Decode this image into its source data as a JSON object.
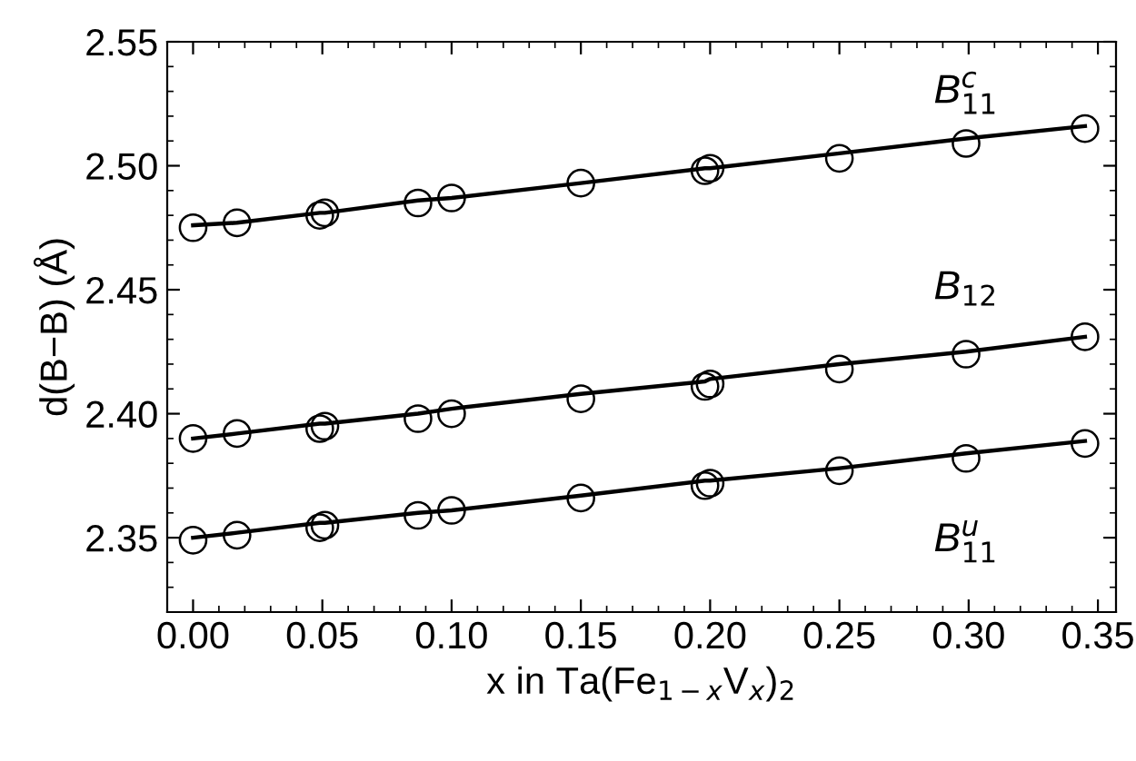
{
  "chart_data": {
    "type": "scatter",
    "xlabel": "x in Ta(Fe$_{1−x}$V$_{x}$)$_{2}$",
    "ylabel": "d(B−B) (Å)",
    "x": [
      0,
      0.017,
      0.049,
      0.051,
      0.087,
      0.1,
      0.15,
      0.198,
      0.2,
      0.25,
      0.299,
      0.345
    ],
    "series": [
      {
        "color": "#000000",
        "values": [
          2.475,
          2.477,
          2.48,
          2.481,
          2.485,
          2.487,
          2.493,
          2.498,
          2.499,
          2.503,
          2.509,
          2.515
        ]
      },
      {
        "color": "#000000",
        "values": [
          2.39,
          2.392,
          2.394,
          2.395,
          2.398,
          2.4,
          2.406,
          2.411,
          2.412,
          2.418,
          2.424,
          2.431
        ]
      },
      {
        "color": "#000000",
        "values": [
          2.349,
          2.351,
          2.354,
          2.355,
          2.359,
          2.361,
          2.366,
          2.371,
          2.372,
          2.377,
          2.382,
          2.388
        ]
      },
      {
        "type": "line",
        "color": "#000000",
        "line_style": "solid",
        "marker": "none",
        "values": [
          2.476,
          2.477,
          2.481,
          2.481,
          2.486,
          2.487,
          2.493,
          2.499,
          2.499,
          2.505,
          2.511,
          2.516
        ]
      },
      {
        "type": "line",
        "color": "#000000",
        "line_style": "solid",
        "marker": "none",
        "values": [
          2.39,
          2.392,
          2.396,
          2.396,
          2.4,
          2.402,
          2.408,
          2.413,
          2.414,
          2.42,
          2.425,
          2.431
        ]
      },
      {
        "type": "line",
        "color": "#000000",
        "line_style": "solid",
        "marker": "none",
        "values": [
          2.35,
          2.352,
          2.356,
          2.356,
          2.36,
          2.361,
          2.367,
          2.373,
          2.373,
          2.378,
          2.384,
          2.389
        ]
      }
    ],
    "xlim": [
      -0.01,
      0.357
    ],
    "ylim": [
      2.32,
      2.55
    ],
    "xticks": [
      {
        "value": 0,
        "label": "0.00"
      },
      {
        "value": 0.05,
        "label": "0.05"
      },
      {
        "value": 0.1,
        "label": "0.10"
      },
      {
        "value": 0.15,
        "label": "0.15"
      },
      {
        "value": 0.2,
        "label": "0.20"
      },
      {
        "value": 0.25,
        "label": "0.25"
      },
      {
        "value": 0.3,
        "label": "0.30"
      },
      {
        "value": 0.35,
        "label": "0.35"
      }
    ],
    "yticks": [
      {
        "value": 2.35,
        "label": "2.35"
      },
      {
        "value": 2.4,
        "label": "2.40"
      },
      {
        "value": 2.45,
        "label": "2.45"
      },
      {
        "value": 2.5,
        "label": "2.50"
      },
      {
        "value": 2.55,
        "label": "2.55"
      }
    ],
    "annotations": [
      "B$^{c}$$_{11}$",
      "B$_{12}$",
      "B$^{u}$$_{11}$"
    ],
    "marker": "circle",
    "grid": false,
    "legend": false
  }
}
